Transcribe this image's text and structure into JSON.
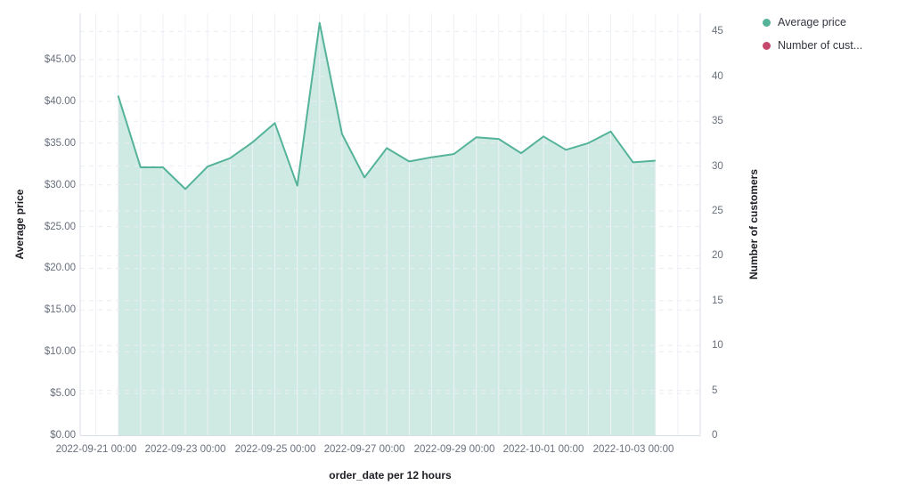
{
  "chart_data": {
    "type": "area",
    "x_axis": {
      "label": "order_date per 12 hours",
      "tick_labels": [
        "2022-09-21 00:00",
        "2022-09-23 00:00",
        "2022-09-25 00:00",
        "2022-09-27 00:00",
        "2022-09-29 00:00",
        "2022-10-01 00:00",
        "2022-10-03 00:00"
      ],
      "tick_positions_halfdays": [
        0,
        4,
        8,
        12,
        16,
        20,
        24
      ]
    },
    "y_left": {
      "label": "Average price",
      "tick_labels": [
        "$0.00",
        "$5.00",
        "$10.00",
        "$15.00",
        "$20.00",
        "$25.00",
        "$30.00",
        "$35.00",
        "$40.00",
        "$45.00"
      ],
      "tick_values": [
        0,
        5,
        10,
        15,
        20,
        25,
        30,
        35,
        40,
        45
      ],
      "range": [
        0,
        50.5
      ]
    },
    "y_right": {
      "label": "Number of customers",
      "tick_labels": [
        "0",
        "5",
        "10",
        "15",
        "20",
        "25",
        "30",
        "35",
        "40",
        "45"
      ],
      "tick_values": [
        0,
        5,
        10,
        15,
        20,
        25,
        30,
        35,
        40,
        45
      ],
      "range": [
        0,
        47
      ]
    },
    "grid": {
      "vertical": "solid every 12 hours",
      "horizontal": "dashed at both axes ticks"
    },
    "legend_position": "top-right",
    "x": [
      "2022-09-21 12:00",
      "2022-09-22 00:00",
      "2022-09-22 12:00",
      "2022-09-23 00:00",
      "2022-09-23 12:00",
      "2022-09-24 00:00",
      "2022-09-24 12:00",
      "2022-09-25 00:00",
      "2022-09-25 12:00",
      "2022-09-26 00:00",
      "2022-09-26 12:00",
      "2022-09-27 00:00",
      "2022-09-27 12:00",
      "2022-09-28 00:00",
      "2022-09-28 12:00",
      "2022-09-29 00:00",
      "2022-09-29 12:00",
      "2022-09-30 00:00",
      "2022-09-30 12:00",
      "2022-10-01 00:00",
      "2022-10-01 12:00",
      "2022-10-02 00:00",
      "2022-10-02 12:00",
      "2022-10-03 00:00",
      "2022-10-03 12:00"
    ],
    "series": [
      {
        "name": "Average price",
        "axis": "left",
        "color": "#54b399",
        "values": [
          40.7,
          32.1,
          32.1,
          29.5,
          32.2,
          33.2,
          35.1,
          37.4,
          29.9,
          49.4,
          36.1,
          30.9,
          34.4,
          32.8,
          33.3,
          33.7,
          35.7,
          35.5,
          33.8,
          35.8,
          34.2,
          35.0,
          36.4,
          32.7,
          32.9
        ]
      },
      {
        "name": "Number of customers",
        "axis": "right",
        "color": "#c5496c",
        "values": []
      }
    ]
  },
  "legend": {
    "items": [
      {
        "label": "Average price",
        "color": "#54b399"
      },
      {
        "label": "Number of cust...",
        "color": "#c5496c"
      }
    ]
  },
  "colors": {
    "area_line": "#54b399",
    "area_fill_base": "#54b399",
    "grid_vertical": "#eef1f5",
    "grid_dash": "#e9edf2",
    "axis_line": "#d8dee8",
    "tick_text": "#69707d",
    "title_text": "#1d1e24"
  }
}
